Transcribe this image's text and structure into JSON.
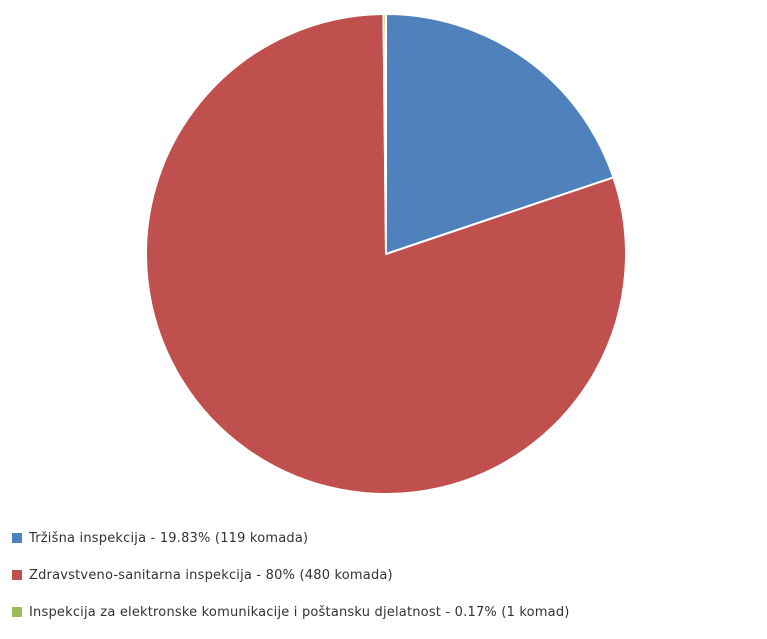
{
  "chart_data": {
    "type": "pie",
    "title": "",
    "legend_position": "bottom-left",
    "series": [
      {
        "name": "",
        "values": [
          119,
          480,
          1
        ],
        "percentages": [
          19.83,
          80,
          0.17
        ],
        "categories": [
          "Tržišna inspekcija",
          "Zdravstveno-sanitarna inspekcija",
          "Inspekcija za elektronske komunikacije i poštansku djelatnost"
        ],
        "colors": [
          "#4f81bd",
          "#c0504d",
          "#9bbb59"
        ]
      }
    ],
    "legend": [
      "Tržišna inspekcija  - 19.83% (119 komada)",
      "Zdravstveno-sanitarna inspekcija  - 80% (480 komada)",
      "Inspekcija za elektronske komunikacije i poštansku djelatnost  - 0.17% (1 komad)"
    ]
  }
}
